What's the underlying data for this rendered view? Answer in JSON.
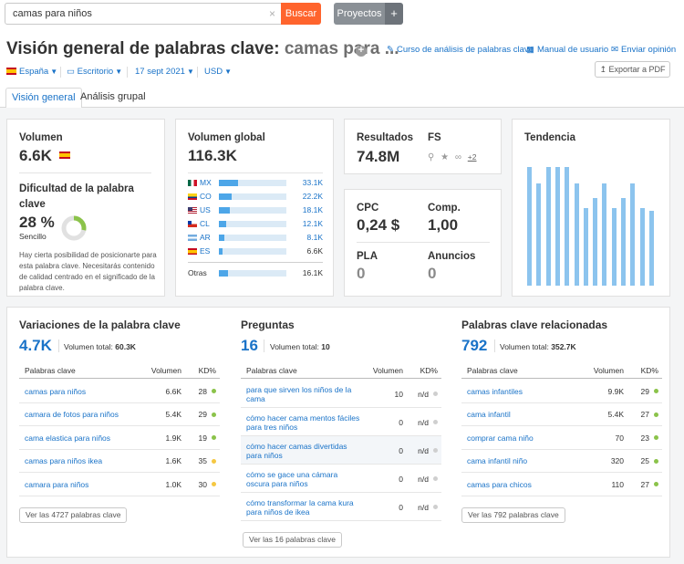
{
  "search": {
    "value": "camas para niños",
    "clear": "×",
    "button": "Buscar"
  },
  "projects": {
    "label": "Proyectos",
    "plus": "+"
  },
  "title": {
    "main": "Visión general de palabras clave:",
    "keyword": "camas para ..."
  },
  "links": {
    "course": "Curso de análisis de palabras clave",
    "manual": "Manual de usuario",
    "feedback": "Enviar opinión"
  },
  "filters": {
    "country": "España",
    "device": "Escritorio",
    "date": "17 sept 2021",
    "currency": "USD"
  },
  "export": "Exportar a PDF",
  "tabs": {
    "overview": "Visión general",
    "group": "Análisis grupal"
  },
  "volume": {
    "label": "Volumen",
    "value": "6.6K"
  },
  "difficulty": {
    "label": "Dificultad de la palabra clave",
    "value": "28 %",
    "level": "Sencillo",
    "percent": 28,
    "desc": "Hay cierta posibilidad de posicionarte para esta palabra clave. Necesitarás contenido de calidad centrado en el significado de la palabra clave.",
    "color": "#8bc34a"
  },
  "global": {
    "label": "Volumen global",
    "value": "116.3K",
    "countries": [
      {
        "code": "MX",
        "value": "33.1K",
        "fill": 0.28
      },
      {
        "code": "CO",
        "value": "22.2K",
        "fill": 0.19
      },
      {
        "code": "US",
        "value": "18.1K",
        "fill": 0.16
      },
      {
        "code": "CL",
        "value": "12.1K",
        "fill": 0.11
      },
      {
        "code": "AR",
        "value": "8.1K",
        "fill": 0.08
      },
      {
        "code": "ES",
        "value": "6.6K",
        "fill": 0.06
      }
    ],
    "others_label": "Otras",
    "others_value": "16.1K",
    "others_fill": 0.14
  },
  "results": {
    "label": "Resultados",
    "value": "74.8M",
    "fs_label": "FS",
    "fs_more": "+2"
  },
  "cpc": {
    "label": "CPC",
    "value": "0,24 $",
    "comp_label": "Comp.",
    "comp_value": "1,00",
    "pla_label": "PLA",
    "pla_value": "0",
    "ads_label": "Anuncios",
    "ads_value": "0"
  },
  "trend": {
    "label": "Tendencia",
    "values": [
      0.95,
      0.82,
      0.95,
      0.95,
      0.95,
      0.82,
      0.62,
      0.7,
      0.82,
      0.62,
      0.7,
      0.82,
      0.62,
      0.6
    ]
  },
  "variations": {
    "title": "Variaciones de la palabra clave",
    "count": "4.7K",
    "total_label": "Volumen total:",
    "total": "60.3K",
    "headers": {
      "kw": "Palabras clave",
      "vol": "Volumen",
      "kd": "KD%"
    },
    "rows": [
      {
        "kw": "camas para niños",
        "vol": "6.6K",
        "kd": "28",
        "color": "#8bc34a"
      },
      {
        "kw": "camara de fotos para niños",
        "vol": "5.4K",
        "kd": "29",
        "color": "#8bc34a"
      },
      {
        "kw": "cama elastica para niños",
        "vol": "1.9K",
        "kd": "19",
        "color": "#8bc34a"
      },
      {
        "kw": "camas para niños ikea",
        "vol": "1.6K",
        "kd": "35",
        "color": "#f5c842"
      },
      {
        "kw": "camara para niños",
        "vol": "1.0K",
        "kd": "30",
        "color": "#f5c842"
      }
    ],
    "more": "Ver las 4727 palabras clave"
  },
  "questions": {
    "title": "Preguntas",
    "count": "16",
    "total_label": "Volumen total:",
    "total": "10",
    "headers": {
      "kw": "Palabras clave",
      "vol": "Volumen",
      "kd": "KD%"
    },
    "rows": [
      {
        "kw": "para que sirven los niños de la cama",
        "vol": "10",
        "kd": "n/d",
        "color": "#cfcfcf"
      },
      {
        "kw": "cómo hacer cama mentos fáciles para tres niños",
        "vol": "0",
        "kd": "n/d",
        "color": "#cfcfcf"
      },
      {
        "kw": "cómo hacer camas divertidas para niños",
        "vol": "0",
        "kd": "n/d",
        "color": "#cfcfcf"
      },
      {
        "kw": "cómo se gace una cámara oscura para niños",
        "vol": "0",
        "kd": "n/d",
        "color": "#cfcfcf"
      },
      {
        "kw": "cómo transformar la cama kura para niños de ikea",
        "vol": "0",
        "kd": "n/d",
        "color": "#cfcfcf"
      }
    ],
    "more": "Ver las 16 palabras clave"
  },
  "related": {
    "title": "Palabras clave relacionadas",
    "count": "792",
    "total_label": "Volumen total:",
    "total": "352.7K",
    "headers": {
      "kw": "Palabras clave",
      "vol": "Volumen",
      "kd": "KD%"
    },
    "rows": [
      {
        "kw": "camas infantiles",
        "vol": "9.9K",
        "kd": "29",
        "color": "#8bc34a"
      },
      {
        "kw": "cama infantil",
        "vol": "5.4K",
        "kd": "27",
        "color": "#8bc34a"
      },
      {
        "kw": "comprar cama niño",
        "vol": "70",
        "kd": "23",
        "color": "#8bc34a"
      },
      {
        "kw": "cama infantil niño",
        "vol": "320",
        "kd": "25",
        "color": "#8bc34a"
      },
      {
        "kw": "camas para chicos",
        "vol": "110",
        "kd": "27",
        "color": "#8bc34a"
      }
    ],
    "more": "Ver las 792 palabras clave"
  }
}
